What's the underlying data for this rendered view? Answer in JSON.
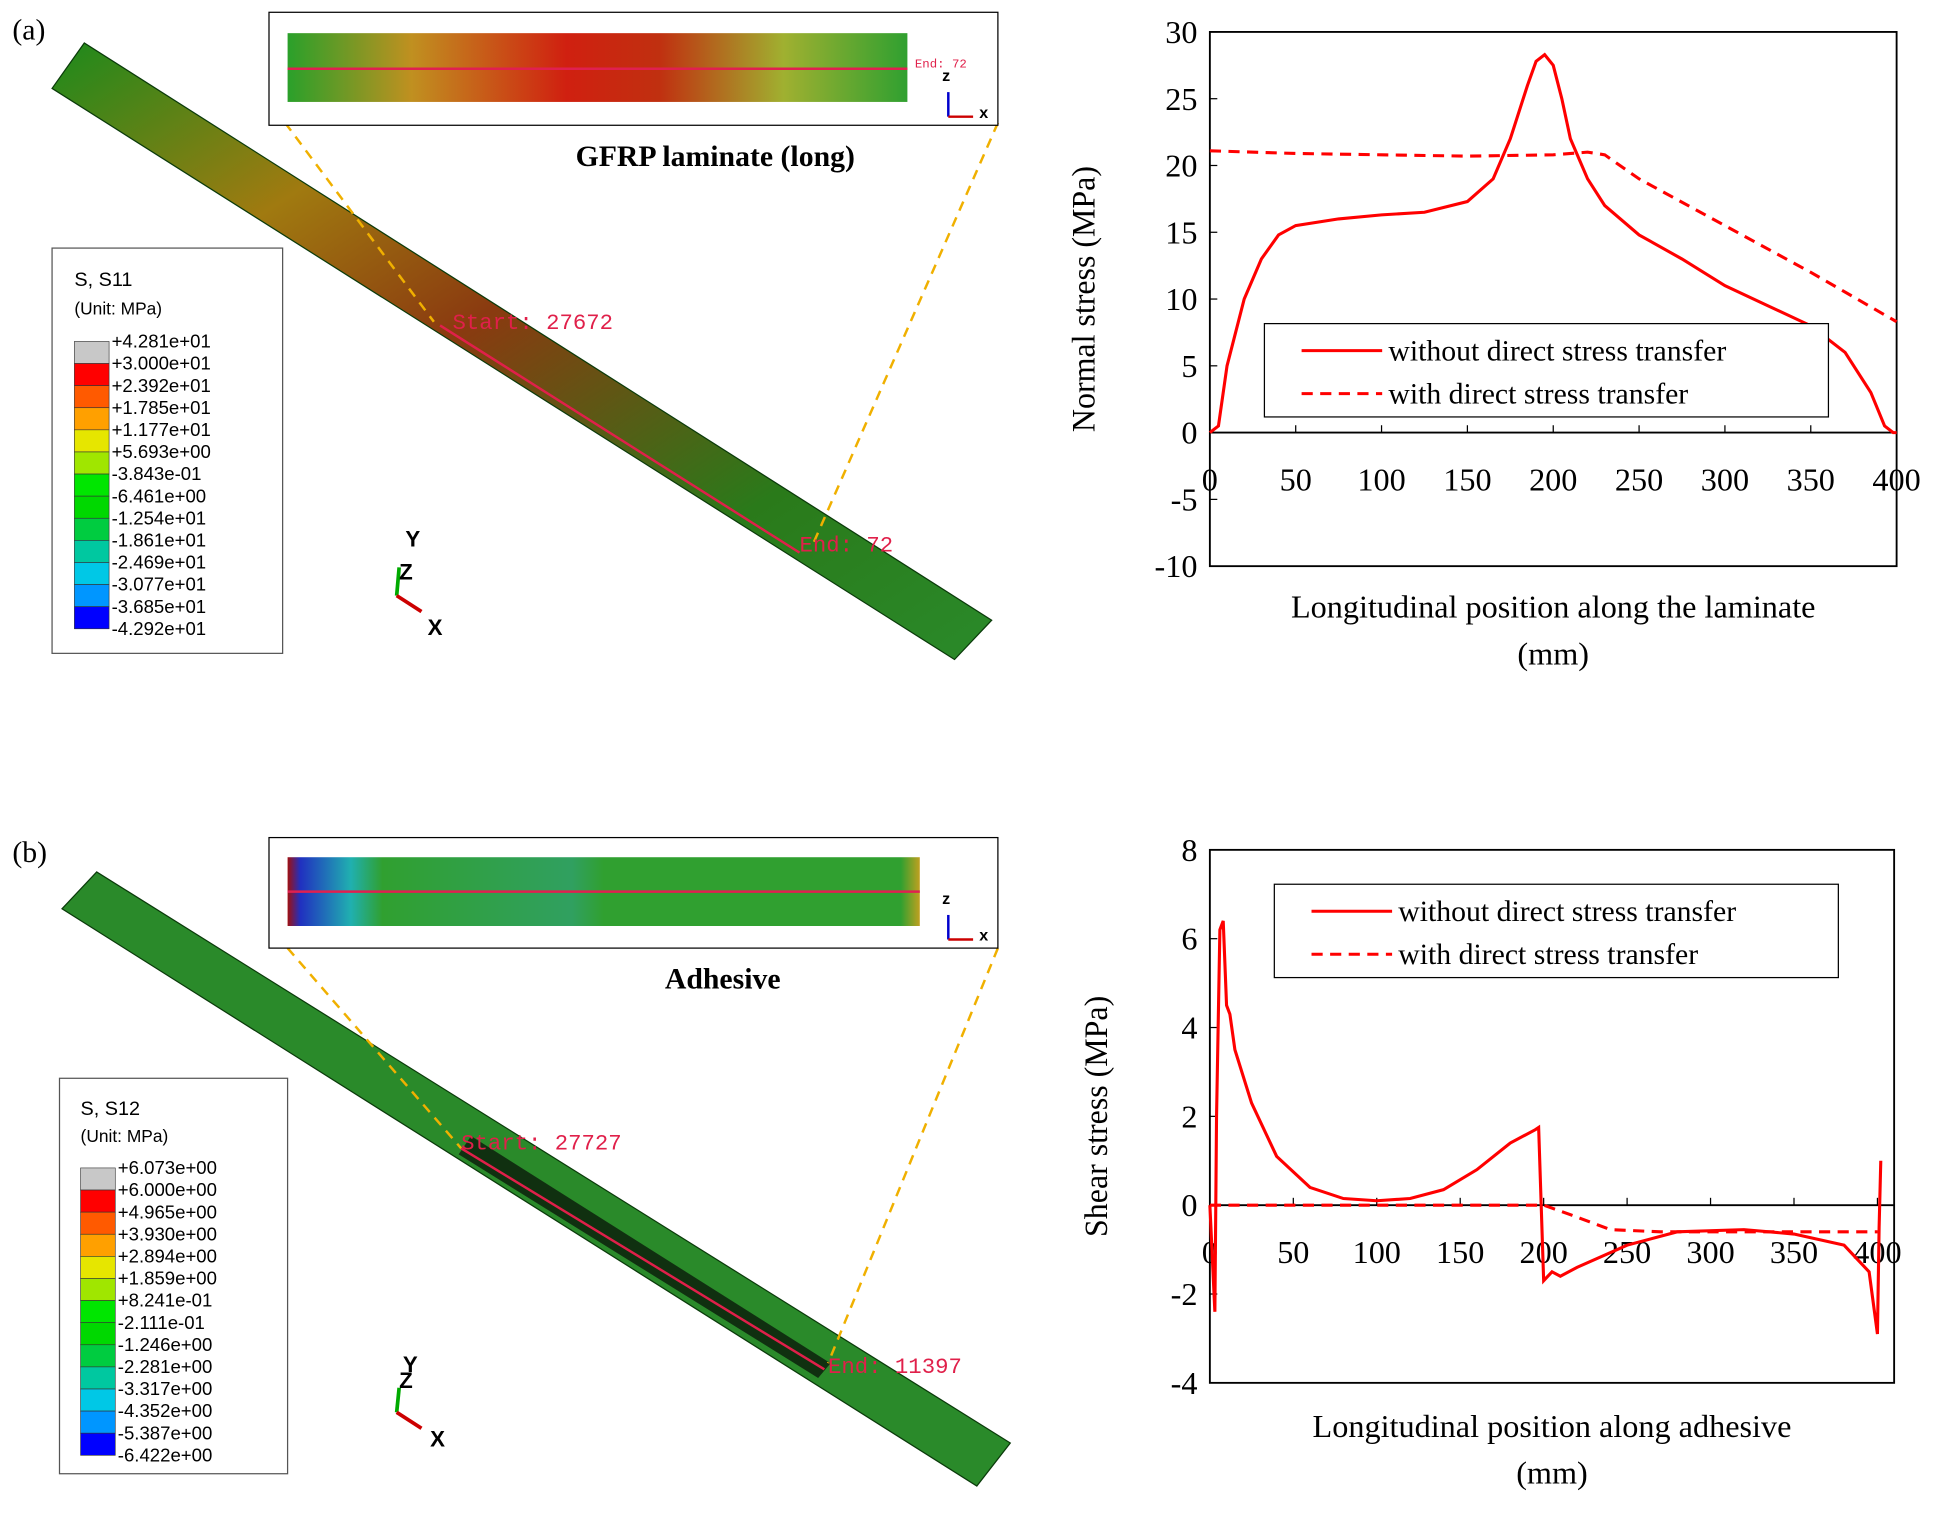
{
  "panels": [
    {
      "label": "(a)",
      "inset_title": "GFRP laminate (long)",
      "probe_start": "Start: 27672",
      "probe_end": "End: 72",
      "triad": [
        "Y",
        "Z",
        "X"
      ],
      "inset_axes": [
        "z",
        "x"
      ],
      "contour_legend": {
        "title": "S, S11",
        "unit": "(Unit: MPa)",
        "labels": [
          "+4.281e+01",
          "+3.000e+01",
          "+2.392e+01",
          "+1.785e+01",
          "+1.177e+01",
          "+5.693e+00",
          "-3.843e-01",
          "-6.461e+00",
          "-1.254e+01",
          "-1.861e+01",
          "-2.469e+01",
          "-3.077e+01",
          "-3.685e+01",
          "-4.292e+01"
        ],
        "colors": [
          "#c8c8c8",
          "#ff0000",
          "#ff5a00",
          "#ffa000",
          "#e6e600",
          "#a0e600",
          "#00e600",
          "#00d800",
          "#00cc40",
          "#00c8a0",
          "#00c8e6",
          "#0096ff",
          "#0000ff"
        ]
      }
    },
    {
      "label": "(b)",
      "inset_title": "Adhesive",
      "probe_start": "Start: 27727",
      "probe_end": "End: 11397",
      "triad": [
        "Y",
        "Z",
        "X"
      ],
      "inset_axes": [
        "z",
        "x"
      ],
      "contour_legend": {
        "title": "S, S12",
        "unit": "(Unit: MPa)",
        "labels": [
          "+6.073e+00",
          "+6.000e+00",
          "+4.965e+00",
          "+3.930e+00",
          "+2.894e+00",
          "+1.859e+00",
          "+8.241e-01",
          "-2.111e-01",
          "-1.246e+00",
          "-2.281e+00",
          "-3.317e+00",
          "-4.352e+00",
          "-5.387e+00",
          "-6.422e+00"
        ],
        "colors": [
          "#c8c8c8",
          "#ff0000",
          "#ff5a00",
          "#ffa000",
          "#e6e600",
          "#a0e600",
          "#00e600",
          "#00d800",
          "#00cc40",
          "#00c8a0",
          "#00c8e6",
          "#0096ff",
          "#0000ff"
        ]
      }
    }
  ],
  "chart_data": [
    {
      "type": "line",
      "ylabel": "Normal stress (MPa)",
      "xlabel": [
        "Longitudinal position along the laminate",
        "(mm)"
      ],
      "xlim": [
        0,
        400
      ],
      "xticks": [
        0,
        50,
        100,
        150,
        200,
        250,
        300,
        350,
        400
      ],
      "ylim": [
        -10,
        30
      ],
      "yticks": [
        -10,
        -5,
        0,
        5,
        10,
        15,
        20,
        25,
        30
      ],
      "legend": "center right",
      "series": [
        {
          "name": "without direct stress transfer",
          "color": "#ff0000",
          "dash": false,
          "x": [
            0,
            5,
            10,
            20,
            30,
            40,
            50,
            75,
            100,
            125,
            150,
            165,
            175,
            185,
            190,
            195,
            200,
            205,
            210,
            220,
            230,
            250,
            275,
            300,
            325,
            350,
            370,
            385,
            393,
            398,
            400
          ],
          "values": [
            0,
            0.5,
            5,
            10,
            13,
            14.8,
            15.5,
            16,
            16.3,
            16.5,
            17.3,
            19,
            22,
            26,
            27.8,
            28.3,
            27.5,
            25,
            22,
            19,
            17,
            14.8,
            13,
            11,
            9.5,
            8,
            6,
            3,
            0.5,
            0,
            0
          ]
        },
        {
          "name": "with direct stress transfer",
          "color": "#ff0000",
          "dash": true,
          "x": [
            0,
            50,
            100,
            150,
            200,
            220,
            230,
            250,
            300,
            350,
            400
          ],
          "values": [
            21.1,
            20.9,
            20.8,
            20.7,
            20.8,
            21,
            20.8,
            19,
            15.5,
            12,
            8.3
          ]
        }
      ]
    },
    {
      "type": "line",
      "ylabel": "Shear stress (MPa)",
      "xlabel": [
        "Longitudinal position along adhesive",
        "(mm)"
      ],
      "xlim": [
        0,
        410
      ],
      "xticks": [
        0,
        50,
        100,
        150,
        200,
        250,
        300,
        350,
        400
      ],
      "ylim": [
        -4,
        8
      ],
      "yticks": [
        -4,
        -2,
        0,
        2,
        4,
        6,
        8
      ],
      "legend": "upper right",
      "series": [
        {
          "name": "without direct stress transfer",
          "color": "#ff0000",
          "dash": false,
          "x": [
            0,
            3,
            4,
            6,
            8,
            10,
            12,
            15,
            25,
            40,
            60,
            80,
            100,
            120,
            140,
            160,
            180,
            195,
            197,
            200,
            205,
            210,
            220,
            250,
            280,
            320,
            350,
            380,
            395,
            400,
            401,
            402
          ],
          "values": [
            0,
            -2.4,
            2,
            6.2,
            6.4,
            4.5,
            4.3,
            3.5,
            2.3,
            1.1,
            0.4,
            0.15,
            0.1,
            0.15,
            0.35,
            0.8,
            1.4,
            1.7,
            1.75,
            -1.7,
            -1.5,
            -1.6,
            -1.4,
            -0.9,
            -0.6,
            -0.55,
            -0.65,
            -0.9,
            -1.5,
            -2.9,
            -0.5,
            1.0
          ]
        },
        {
          "name": "with direct stress transfer",
          "color": "#ff0000",
          "dash": true,
          "x": [
            0,
            200,
            215,
            240,
            270,
            400
          ],
          "values": [
            0,
            0,
            -0.2,
            -0.55,
            -0.6,
            -0.6
          ]
        }
      ]
    }
  ]
}
